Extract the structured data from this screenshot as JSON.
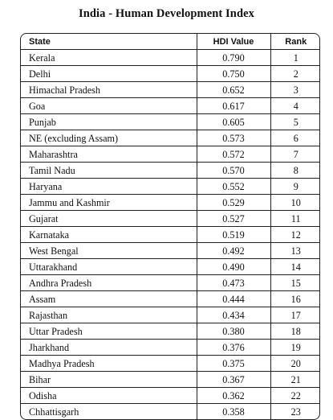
{
  "title": "India - Human Development Index",
  "table": {
    "headers": {
      "state": "State",
      "hdi": "HDI Value",
      "rank": "Rank"
    },
    "rows": [
      {
        "state": "Kerala",
        "hdi": "0.790",
        "rank": "1"
      },
      {
        "state": "Delhi",
        "hdi": "0.750",
        "rank": "2"
      },
      {
        "state": "Himachal Pradesh",
        "hdi": "0.652",
        "rank": "3"
      },
      {
        "state": "Goa",
        "hdi": "0.617",
        "rank": "4"
      },
      {
        "state": "Punjab",
        "hdi": "0.605",
        "rank": "5"
      },
      {
        "state": "NE (excluding Assam)",
        "hdi": "0.573",
        "rank": "6"
      },
      {
        "state": "Maharashtra",
        "hdi": "0.572",
        "rank": "7"
      },
      {
        "state": "Tamil Nadu",
        "hdi": "0.570",
        "rank": "8"
      },
      {
        "state": "Haryana",
        "hdi": "0.552",
        "rank": "9"
      },
      {
        "state": "Jammu and Kashmir",
        "hdi": "0.529",
        "rank": "10"
      },
      {
        "state": "Gujarat",
        "hdi": "0.527",
        "rank": "11"
      },
      {
        "state": "Karnataka",
        "hdi": "0.519",
        "rank": "12"
      },
      {
        "state": "West Bengal",
        "hdi": "0.492",
        "rank": "13"
      },
      {
        "state": "Uttarakhand",
        "hdi": "0.490",
        "rank": "14"
      },
      {
        "state": "Andhra Pradesh",
        "hdi": "0.473",
        "rank": "15"
      },
      {
        "state": "Assam",
        "hdi": "0.444",
        "rank": "16"
      },
      {
        "state": "Rajasthan",
        "hdi": "0.434",
        "rank": "17"
      },
      {
        "state": "Uttar Pradesh",
        "hdi": "0.380",
        "rank": "18"
      },
      {
        "state": "Jharkhand",
        "hdi": "0.376",
        "rank": "19"
      },
      {
        "state": "Madhya Pradesh",
        "hdi": "0.375",
        "rank": "20"
      },
      {
        "state": "Bihar",
        "hdi": "0.367",
        "rank": "21"
      },
      {
        "state": "Odisha",
        "hdi": "0.362",
        "rank": "22"
      },
      {
        "state": "Chhattisgarh",
        "hdi": "0.358",
        "rank": "23"
      }
    ]
  }
}
